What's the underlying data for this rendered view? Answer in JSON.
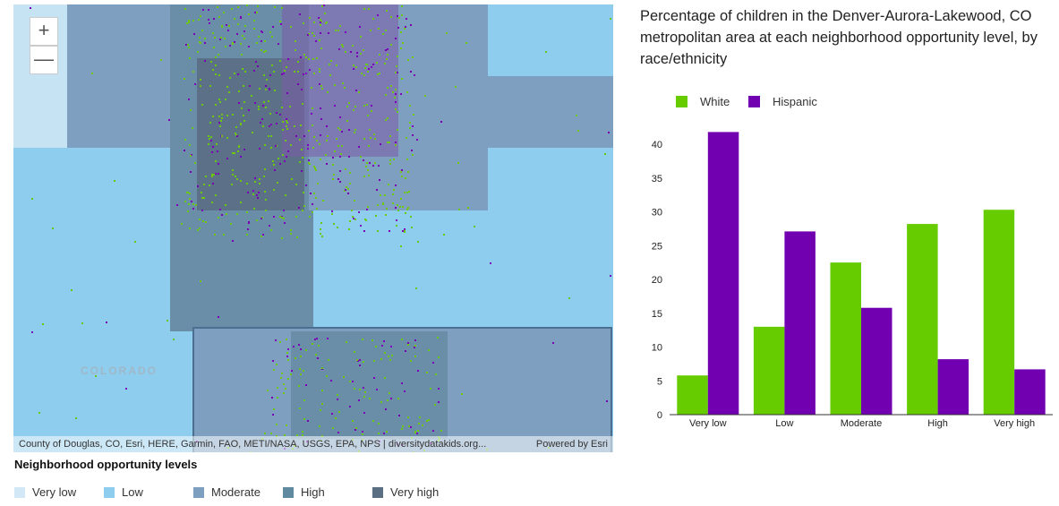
{
  "map": {
    "zoom_in": "+",
    "zoom_out": "—",
    "state_label": "COLORADO",
    "attribution": "County of Douglas, CO, Esri, HERE, Garmin, FAO, METI/NASA, USGS, EPA, NPS | diversitydatakids.org...",
    "powered_by": "Powered by Esri",
    "colors": {
      "very_low": "#cfe6f5",
      "low": "#8fcdee",
      "moderate": "#7f9fc0",
      "high": "#6b8ea8",
      "very_high": "#5c7188",
      "white_dots": "#6cc80b",
      "hispanic_dots": "#7a00b5"
    }
  },
  "legend": {
    "title": "Neighborhood opportunity levels",
    "items": [
      {
        "label": "Very low",
        "color": "#d3e8f6"
      },
      {
        "label": "Low",
        "color": "#8fcdee"
      },
      {
        "label": "Moderate",
        "color": "#7f9fc0"
      },
      {
        "label": "High",
        "color": "#5f8aa0"
      },
      {
        "label": "Very high",
        "color": "#5b6f82"
      }
    ]
  },
  "chart_data": {
    "type": "bar",
    "title": "Percentage of children in the Denver-Aurora-Lakewood, CO metropolitan area at each neighborhood opportunity level, by race/ethnicity",
    "categories": [
      "Very low",
      "Low",
      "Moderate",
      "High",
      "Very high"
    ],
    "series": [
      {
        "name": "White",
        "color": "#66cc00",
        "values": [
          5.8,
          13.0,
          22.5,
          28.2,
          30.3
        ]
      },
      {
        "name": "Hispanic",
        "color": "#7000b0",
        "values": [
          41.8,
          27.1,
          15.8,
          8.2,
          6.7
        ]
      }
    ],
    "yticks": [
      0,
      5,
      10,
      15,
      20,
      25,
      30,
      35,
      40
    ],
    "ylim": [
      0,
      42
    ],
    "legend_position": "top-left",
    "grid": false
  }
}
